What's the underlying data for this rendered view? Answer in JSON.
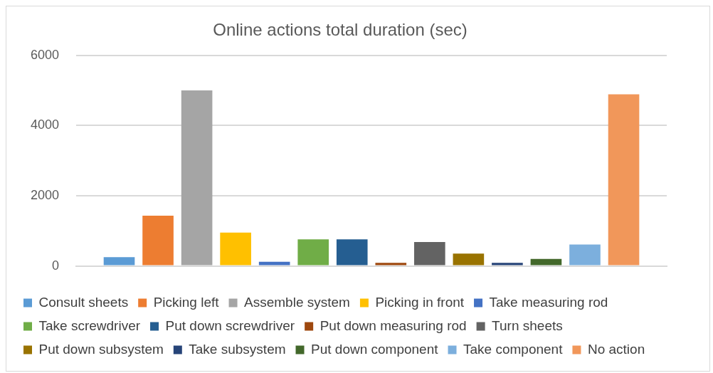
{
  "chart_data": {
    "type": "bar",
    "title": "Online actions total duration (sec)",
    "categories": [
      null
    ],
    "series": [
      {
        "name": "Consult sheets",
        "color": "#5b9bd5",
        "values": [
          250
        ]
      },
      {
        "name": "Picking left",
        "color": "#ed7d31",
        "values": [
          1430
        ]
      },
      {
        "name": "Assemble system",
        "color": "#a5a5a5",
        "values": [
          5000
        ]
      },
      {
        "name": "Picking in front",
        "color": "#ffc000",
        "values": [
          950
        ]
      },
      {
        "name": "Take measuring rod",
        "color": "#4472c4",
        "values": [
          120
        ]
      },
      {
        "name": "Take screwdriver",
        "color": "#70ad47",
        "values": [
          760
        ]
      },
      {
        "name": "Put down screwdriver",
        "color": "#255e91",
        "values": [
          760
        ]
      },
      {
        "name": "Put down measuring rod",
        "color": "#9e480e",
        "values": [
          90
        ]
      },
      {
        "name": "Turn sheets",
        "color": "#636363",
        "values": [
          680
        ]
      },
      {
        "name": "Put down subsystem",
        "color": "#997300",
        "values": [
          350
        ]
      },
      {
        "name": "Take subsystem",
        "color": "#264478",
        "values": [
          90
        ]
      },
      {
        "name": "Put down component",
        "color": "#43682b",
        "values": [
          200
        ]
      },
      {
        "name": "Take component",
        "color": "#7cafdd",
        "values": [
          610
        ]
      },
      {
        "name": "No action",
        "color": "#f1975a",
        "values": [
          4890
        ]
      }
    ],
    "ylim": [
      0,
      6000
    ],
    "yticks": [
      0,
      2000,
      4000,
      6000
    ],
    "grid": "y",
    "legend": "bottom"
  }
}
